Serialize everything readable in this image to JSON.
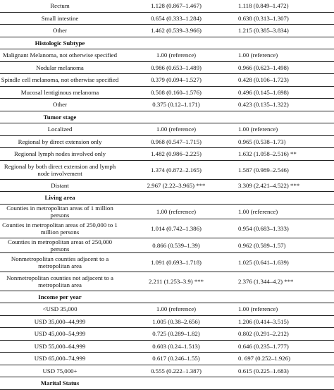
{
  "rows": [
    {
      "type": "row",
      "label": "Rectum",
      "v1": "1.128 (0.867–1.467)",
      "v2": "1.118 (0.849–1.472)"
    },
    {
      "type": "row",
      "label": "Small intestine",
      "v1": "0.654 (0.333–1.284)",
      "v2": "0.638 (0.313–1.307)"
    },
    {
      "type": "row",
      "label": "Other",
      "v1": "1.462 (0.539–3.966)",
      "v2": "1.215 (0.385–3.834)"
    },
    {
      "type": "section",
      "label": "Histologic Subtype"
    },
    {
      "type": "row",
      "label": "Malignant Melanoma, not otherwise specified",
      "v1": "1.00 (reference)",
      "v2": "1.00 (reference)"
    },
    {
      "type": "row",
      "label": "Nodular melanoma",
      "v1": "0.986 (0.653–1.489)",
      "v2": "0.966 (0.623–1.498)"
    },
    {
      "type": "row",
      "label": "Spindle cell melanoma, not otherwise specified",
      "v1": "0.379 (0.094–1.527)",
      "v2": "0.428 (0.106–1.723)"
    },
    {
      "type": "row",
      "label": "Mucosal lentiginous melanoma",
      "v1": "0.508 (0.160–1.576)",
      "v2": "0.496 (0.145–1.698)"
    },
    {
      "type": "row",
      "label": "Other",
      "v1": "0.375 (0.12–1.171)",
      "v2": "0.423 (0.135–1.322)"
    },
    {
      "type": "section",
      "label": "Tumor stage"
    },
    {
      "type": "row",
      "label": "Localized",
      "v1": "1.00 (reference)",
      "v2": "1.00 (reference)"
    },
    {
      "type": "row",
      "label": "Regional by direct extension only",
      "v1": "0.968 (0.547–1.715)",
      "v2": "0.965 (0.538–1.73)"
    },
    {
      "type": "row",
      "label": "Regional lymph nodes involved only",
      "v1": "1.482 (0.986–2.225)",
      "v2": "1.632 (1.058–2.516) **"
    },
    {
      "type": "row",
      "tall": true,
      "label": "Regional by both direct extension and lymph node involvement",
      "v1": "1.374 (0.872–2.165)",
      "v2": "1.587 (0.989–2.546)"
    },
    {
      "type": "row",
      "label": "Distant",
      "v1": "2.967 (2.22–3.965) ***",
      "v2": "3.309 (2.421–4.522) ***"
    },
    {
      "type": "section",
      "label": "Living area"
    },
    {
      "type": "row",
      "label": "Counties in metropolitan areas of 1 million persons",
      "v1": "1.00 (reference)",
      "v2": "1.00 (reference)"
    },
    {
      "type": "row",
      "tall": true,
      "label": "Counties in metropolitan areas of 250,000 to 1 million persons",
      "v1": "1.014 (0.742–1.386)",
      "v2": "0.954 (0.683–1.333)"
    },
    {
      "type": "row",
      "label": "Counties in metropolitan areas of 250,000 persons",
      "v1": "0.866 (0.539–1.39)",
      "v2": "0.962 (0.589–1.57)"
    },
    {
      "type": "row",
      "tall": true,
      "label": "Nonmetropolitan counties adjacent to a metropolitan area",
      "v1": "1.091 (0.693–1.718)",
      "v2": "1.025 (0.641–1.639)"
    },
    {
      "type": "row",
      "tall": true,
      "label": "Nonmetropolitan counties not adjacent to a metropolitan area",
      "v1": "2.211 (1.253–3.9) ***",
      "v2": "2.376 (1.344–4.2) ***"
    },
    {
      "type": "section",
      "label": "Income per year"
    },
    {
      "type": "row",
      "label": "<USD 35,000",
      "v1": "1.00 (reference)",
      "v2": "1.00 (reference)"
    },
    {
      "type": "row",
      "label": "USD 35,000–44,999",
      "v1": "1.005 (0.38–2.656)",
      "v2": "1.206 (0.414–3.515)"
    },
    {
      "type": "row",
      "label": "USD 45,000–54,999",
      "v1": "0.725 (0.289–1.82)",
      "v2": "0.802 (0.291–2.212)"
    },
    {
      "type": "row",
      "label": "USD 55,000–64,999",
      "v1": "0.603 (0.24–1.513)",
      "v2": "0.646 (0.235–1.777)"
    },
    {
      "type": "row",
      "label": "USD 65,000–74,999",
      "v1": "0.617 (0.246–1.55)",
      "v2": "0. 697 (0.252–1.926)"
    },
    {
      "type": "row",
      "label": "USD 75,000+",
      "v1": "0.555 (0.222–1.387)",
      "v2": "0.615 (0.225–1.683)"
    },
    {
      "type": "section",
      "label": "Marital Status"
    }
  ]
}
